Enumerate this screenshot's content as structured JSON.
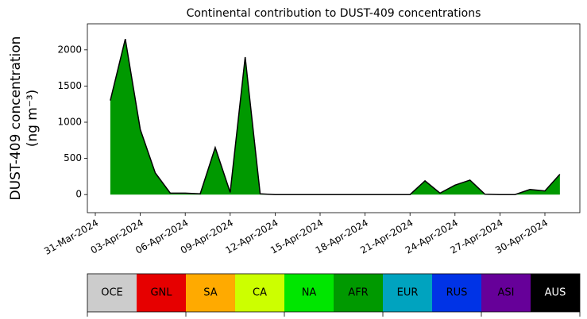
{
  "chart_data": {
    "type": "area",
    "title": "Continental contribution to DUST-409 concentrations",
    "ylabel": [
      "DUST-409 concentration",
      "(ng m⁻³)"
    ],
    "x": [
      "2024-04-01",
      "2024-04-02",
      "2024-04-03",
      "2024-04-04",
      "2024-04-05",
      "2024-04-06",
      "2024-04-07",
      "2024-04-08",
      "2024-04-09",
      "2024-04-10",
      "2024-04-11",
      "2024-04-12",
      "2024-04-13",
      "2024-04-14",
      "2024-04-15",
      "2024-04-16",
      "2024-04-17",
      "2024-04-18",
      "2024-04-19",
      "2024-04-20",
      "2024-04-21",
      "2024-04-22",
      "2024-04-23",
      "2024-04-24",
      "2024-04-25",
      "2024-04-26",
      "2024-04-27",
      "2024-04-28",
      "2024-04-29",
      "2024-04-30",
      "2024-05-01"
    ],
    "series": [
      {
        "name": "AFR",
        "color": "#009900",
        "values": [
          1300,
          2150,
          900,
          300,
          20,
          20,
          10,
          650,
          30,
          1900,
          10,
          0,
          0,
          0,
          0,
          0,
          0,
          0,
          0,
          0,
          0,
          190,
          20,
          130,
          200,
          5,
          0,
          0,
          70,
          50,
          280
        ]
      }
    ],
    "ylim": [
      -250,
      2360
    ],
    "yticks": [
      0,
      500,
      1000,
      1500,
      2000
    ],
    "xticks": [
      {
        "value": "2024-03-31",
        "label": "31-Mar-2024"
      },
      {
        "value": "2024-04-03",
        "label": "03-Apr-2024"
      },
      {
        "value": "2024-04-06",
        "label": "06-Apr-2024"
      },
      {
        "value": "2024-04-09",
        "label": "09-Apr-2024"
      },
      {
        "value": "2024-04-12",
        "label": "12-Apr-2024"
      },
      {
        "value": "2024-04-15",
        "label": "15-Apr-2024"
      },
      {
        "value": "2024-04-18",
        "label": "18-Apr-2024"
      },
      {
        "value": "2024-04-21",
        "label": "21-Apr-2024"
      },
      {
        "value": "2024-04-24",
        "label": "24-Apr-2024"
      },
      {
        "value": "2024-04-27",
        "label": "27-Apr-2024"
      },
      {
        "value": "2024-04-30",
        "label": "30-Apr-2024"
      }
    ],
    "colorbar": {
      "categories": [
        "OCE",
        "GNL",
        "SA",
        "CA",
        "NA",
        "AFR",
        "EUR",
        "RUS",
        "ASI",
        "AUS"
      ],
      "colors": [
        "#cccccc",
        "#e60000",
        "#ffaa00",
        "#ccff00",
        "#00e600",
        "#009900",
        "#00a3bf",
        "#0033e6",
        "#660099",
        "#000000"
      ]
    }
  }
}
